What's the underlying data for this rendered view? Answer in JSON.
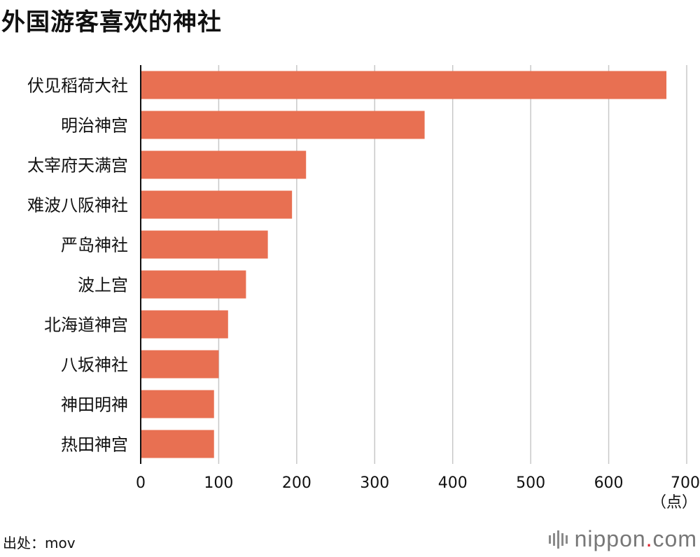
{
  "chart_data": {
    "type": "bar",
    "orientation": "horizontal",
    "title": "外国游客喜欢的神社",
    "categories": [
      "伏见稻荷大社",
      "明治神宫",
      "太宰府天满宫",
      "难波八阪神社",
      "严岛神社",
      "波上宫",
      "北海道神宫",
      "八坂神社",
      "神田明神",
      "热田神宫"
    ],
    "values": [
      674,
      364,
      212,
      194,
      163,
      135,
      112,
      100,
      94,
      94
    ],
    "xlim": [
      0,
      700
    ],
    "xticks": [
      0,
      100,
      200,
      300,
      400,
      500,
      600,
      700
    ],
    "unit": "（点）",
    "bar_color": "#e87052",
    "grid": true
  },
  "footer": {
    "source": "出处：mov",
    "brand_main": "nippon",
    "brand_dot": ".",
    "brand_tail": "com",
    "brand_accent": "#e0232e"
  }
}
